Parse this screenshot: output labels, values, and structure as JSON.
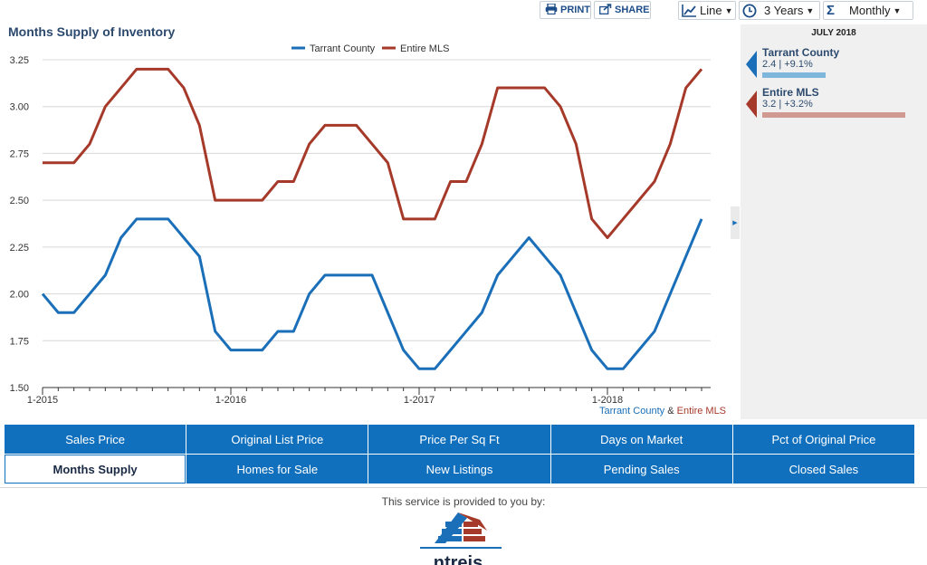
{
  "toolbar": {
    "print_label": "PRINT",
    "share_label": "SHARE",
    "chart_type": "Line",
    "period": "3 Years",
    "interval": "Monthly"
  },
  "chart_title": "Months Supply of Inventory",
  "chart_data": {
    "type": "line",
    "title": "Months Supply of Inventory",
    "xlabel": "",
    "ylabel": "",
    "ylim": [
      1.5,
      3.25
    ],
    "yticks": [
      "1.50",
      "1.75",
      "2.00",
      "2.25",
      "2.50",
      "2.75",
      "3.00",
      "3.25"
    ],
    "xticks": [
      "1-2015",
      "1-2016",
      "1-2017",
      "1-2018"
    ],
    "x": [
      "1-2015",
      "2-2015",
      "3-2015",
      "4-2015",
      "5-2015",
      "6-2015",
      "7-2015",
      "8-2015",
      "9-2015",
      "10-2015",
      "11-2015",
      "12-2015",
      "1-2016",
      "2-2016",
      "3-2016",
      "4-2016",
      "5-2016",
      "6-2016",
      "7-2016",
      "8-2016",
      "9-2016",
      "10-2016",
      "11-2016",
      "12-2016",
      "1-2017",
      "2-2017",
      "3-2017",
      "4-2017",
      "5-2017",
      "6-2017",
      "7-2017",
      "8-2017",
      "9-2017",
      "10-2017",
      "11-2017",
      "12-2017",
      "1-2018",
      "2-2018",
      "3-2018",
      "4-2018",
      "5-2018",
      "6-2018",
      "7-2018"
    ],
    "legend_position": "top-center",
    "grid": true,
    "series": [
      {
        "name": "Tarrant County",
        "color": "#1a6fb8",
        "values": [
          2.0,
          1.9,
          1.9,
          2.0,
          2.1,
          2.3,
          2.4,
          2.4,
          2.4,
          2.3,
          2.2,
          1.8,
          1.7,
          1.7,
          1.7,
          1.8,
          1.8,
          2.0,
          2.1,
          2.1,
          2.1,
          2.1,
          1.9,
          1.7,
          1.6,
          1.6,
          1.7,
          1.8,
          1.9,
          2.1,
          2.2,
          2.3,
          2.2,
          2.1,
          1.9,
          1.7,
          1.6,
          1.6,
          1.7,
          1.8,
          2.0,
          2.2,
          2.4
        ]
      },
      {
        "name": "Entire MLS",
        "color": "#a63a2a",
        "values": [
          2.7,
          2.7,
          2.7,
          2.8,
          3.0,
          3.1,
          3.2,
          3.2,
          3.2,
          3.1,
          2.9,
          2.5,
          2.5,
          2.5,
          2.5,
          2.6,
          2.6,
          2.8,
          2.9,
          2.9,
          2.9,
          2.8,
          2.7,
          2.4,
          2.4,
          2.4,
          2.6,
          2.6,
          2.8,
          3.1,
          3.1,
          3.1,
          3.1,
          3.0,
          2.8,
          2.4,
          2.3,
          2.4,
          2.5,
          2.6,
          2.8,
          3.1,
          3.2
        ]
      }
    ]
  },
  "source_note": {
    "part1": "Tarrant County",
    "amp": " & ",
    "part2": "Entire MLS"
  },
  "side_panel": {
    "month": "JULY 2018",
    "entries": [
      {
        "name": "Tarrant County",
        "value": "2.4 | +9.1%",
        "bar_fraction": 0.44,
        "color": "#7fb6dc",
        "arrow_color": "#1a6fb8"
      },
      {
        "name": "Entire MLS",
        "value": "3.2 | +3.2%",
        "bar_fraction": 1.0,
        "color": "#d09a92",
        "arrow_color": "#a63a2a"
      }
    ]
  },
  "nav_tabs": [
    {
      "label": "Sales Price",
      "active": false
    },
    {
      "label": "Original List Price",
      "active": false
    },
    {
      "label": "Price Per Sq Ft",
      "active": false
    },
    {
      "label": "Days on Market",
      "active": false
    },
    {
      "label": "Pct of Original Price",
      "active": false
    },
    {
      "label": "Months Supply",
      "active": true
    },
    {
      "label": "Homes for Sale",
      "active": false
    },
    {
      "label": "New Listings",
      "active": false
    },
    {
      "label": "Pending Sales",
      "active": false
    },
    {
      "label": "Closed Sales",
      "active": false
    }
  ],
  "footer": {
    "provided_by": "This service is provided to you by:",
    "logo_text": "ntreis"
  }
}
